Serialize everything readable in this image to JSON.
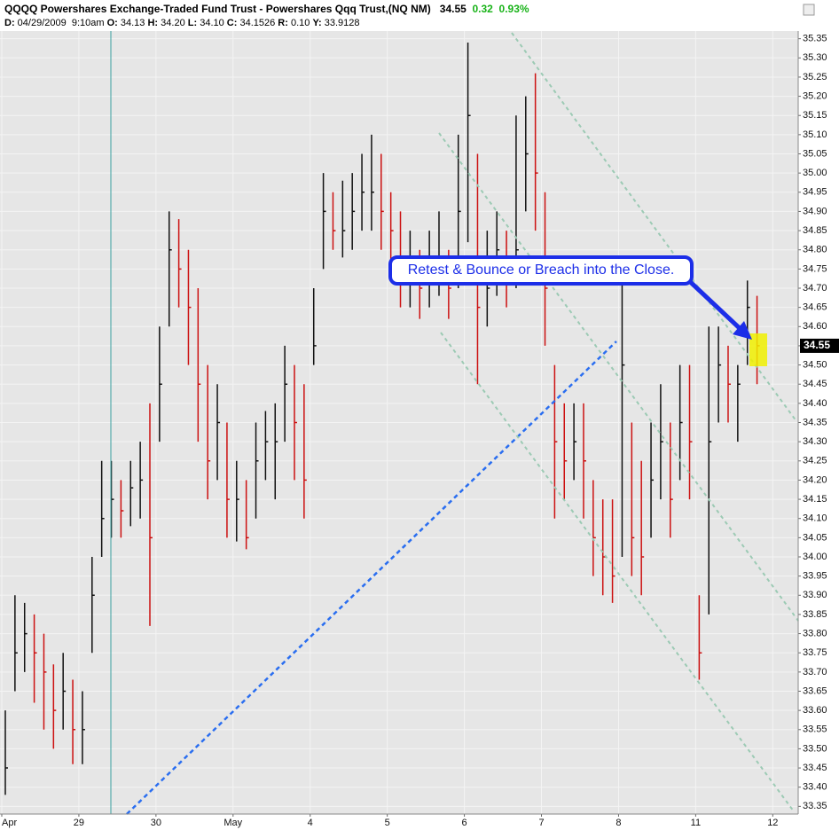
{
  "header": {
    "title": "QQQQ Powershares Exchange-Traded Fund Trust - Powershares Qqq Trust,(NQ NM)",
    "change": 0.32,
    "change_pct": "0.93%",
    "info": [
      {
        "label": "D:",
        "value": "04/29/2009  9:10am"
      },
      {
        "label": "O:",
        "value": "34.13"
      },
      {
        "label": "H:",
        "value": "34.20"
      },
      {
        "label": "L:",
        "value": "34.10"
      },
      {
        "label": "C:",
        "value": "34.1526"
      },
      {
        "label": "R:",
        "value": "0.10"
      },
      {
        "label": "Y:",
        "value": "33.9128"
      }
    ]
  },
  "chart_data": {
    "type": "hlc",
    "annotation": "Retest & Bounce or Breach into the Close.",
    "last_price": 34.55,
    "up_color": "#111111",
    "down_color": "#cc1111",
    "grid": true,
    "xlim": [
      -0.023,
      10.33
    ],
    "xticks": [
      {
        "value": 0,
        "label": "Apr"
      },
      {
        "value": 1,
        "label": "29"
      },
      {
        "value": 2,
        "label": "30"
      },
      {
        "value": 3,
        "label": "May"
      },
      {
        "value": 4,
        "label": "4"
      },
      {
        "value": 5,
        "label": "5"
      },
      {
        "value": 6,
        "label": "6"
      },
      {
        "value": 7,
        "label": "7"
      },
      {
        "value": 8,
        "label": "8"
      },
      {
        "value": 9,
        "label": "11"
      },
      {
        "value": 10,
        "label": "12"
      }
    ],
    "ylim": [
      33.33,
      35.37
    ],
    "yticks": [
      33.35,
      {
        "value": 33.4,
        "label": "33.40"
      },
      33.45,
      {
        "value": 33.5,
        "label": "33.50"
      },
      33.55,
      {
        "value": 33.6,
        "label": "33.60"
      },
      33.65,
      {
        "value": 33.7,
        "label": "33.70"
      },
      33.75,
      {
        "value": 33.8,
        "label": "33.80"
      },
      33.85,
      {
        "value": 33.9,
        "label": "33.90"
      },
      33.95,
      {
        "value": 34,
        "label": "34.00"
      },
      34.05,
      {
        "value": 34.1,
        "label": "34.10"
      },
      34.15,
      {
        "value": 34.2,
        "label": "34.20"
      },
      34.25,
      {
        "value": 34.3,
        "label": "34.30"
      },
      34.35,
      {
        "value": 34.4,
        "label": "34.40"
      },
      34.45,
      {
        "value": 34.5,
        "label": "34.50"
      },
      34.55,
      {
        "value": 34.6,
        "label": "34.60"
      },
      34.65,
      {
        "value": 34.7,
        "label": "34.70"
      },
      34.75,
      {
        "value": 34.8,
        "label": "34.80"
      },
      34.85,
      {
        "value": 34.9,
        "label": "34.90"
      },
      34.95,
      {
        "value": 35,
        "label": "35.00"
      },
      35.05,
      {
        "value": 35.1,
        "label": "35.10"
      },
      35.15,
      {
        "value": 35.2,
        "label": "35.20"
      },
      35.25,
      {
        "value": 35.3,
        "label": "35.30"
      },
      35.35
    ],
    "x": [
      0,
      0.125,
      0.25,
      0.375,
      0.5,
      0.625,
      0.75,
      0.875,
      1,
      1.125,
      1.25,
      1.375,
      1.5,
      1.625,
      1.75,
      1.875,
      2,
      2.125,
      2.25,
      2.375,
      2.5,
      2.625,
      2.75,
      2.875,
      3,
      3.125,
      3.25,
      3.375,
      3.5,
      3.625,
      3.75,
      3.875,
      4,
      4.125,
      4.25,
      4.375,
      4.5,
      4.625,
      4.75,
      4.875,
      5,
      5.125,
      5.25,
      5.375,
      5.5,
      5.625,
      5.75,
      5.875,
      6,
      6.125,
      6.25,
      6.375,
      6.5,
      6.625,
      6.75,
      6.875,
      7,
      7.125,
      7.25,
      7.375,
      7.5,
      7.625,
      7.75,
      7.875,
      8,
      8.125,
      8.25,
      8.375,
      8.5,
      8.625,
      8.75,
      8.875,
      9,
      9.125,
      9.25,
      9.375,
      9.5,
      9.625,
      9.75
    ],
    "high": [
      33.6,
      33.9,
      33.88,
      33.85,
      33.8,
      33.72,
      33.75,
      33.68,
      33.65,
      34.0,
      34.25,
      34.25,
      34.2,
      34.25,
      34.3,
      34.4,
      34.6,
      34.9,
      34.88,
      34.8,
      34.7,
      34.5,
      34.45,
      34.35,
      34.25,
      34.2,
      34.35,
      34.38,
      34.4,
      34.55,
      34.5,
      34.45,
      34.7,
      35.0,
      34.95,
      34.98,
      35.0,
      35.05,
      35.1,
      35.05,
      34.95,
      34.9,
      34.85,
      34.8,
      34.85,
      34.9,
      34.8,
      35.1,
      35.34,
      35.05,
      34.85,
      34.9,
      34.85,
      35.15,
      35.2,
      35.26,
      34.95,
      34.5,
      34.4,
      34.4,
      34.4,
      34.2,
      34.15,
      34.15,
      34.72,
      34.35,
      34.25,
      34.35,
      34.45,
      34.35,
      34.5,
      34.5,
      33.9,
      34.6,
      34.6,
      34.55,
      34.5,
      34.72,
      34.68
    ],
    "low": [
      33.38,
      33.65,
      33.7,
      33.62,
      33.55,
      33.5,
      33.55,
      33.46,
      33.46,
      33.75,
      34.0,
      34.05,
      34.05,
      34.08,
      34.1,
      33.82,
      34.3,
      34.6,
      34.65,
      34.5,
      34.3,
      34.15,
      34.2,
      34.05,
      34.04,
      34.02,
      34.1,
      34.2,
      34.15,
      34.3,
      34.2,
      34.1,
      34.5,
      34.75,
      34.8,
      34.78,
      34.8,
      34.85,
      34.85,
      34.8,
      34.72,
      34.65,
      34.65,
      34.62,
      34.65,
      34.68,
      34.62,
      34.7,
      34.82,
      34.45,
      34.6,
      34.68,
      34.65,
      34.7,
      34.9,
      34.85,
      34.55,
      34.1,
      34.15,
      34.2,
      34.1,
      33.95,
      33.9,
      33.88,
      34.0,
      33.95,
      33.9,
      34.05,
      34.15,
      34.05,
      34.2,
      34.15,
      33.68,
      33.85,
      34.35,
      34.35,
      34.3,
      34.5,
      34.45
    ],
    "close": [
      33.45,
      33.75,
      33.8,
      33.75,
      33.7,
      33.6,
      33.65,
      33.55,
      33.55,
      33.9,
      34.1,
      34.15,
      34.12,
      34.18,
      34.2,
      34.05,
      34.45,
      34.8,
      34.75,
      34.65,
      34.45,
      34.25,
      34.35,
      34.15,
      34.15,
      34.05,
      34.25,
      34.3,
      34.3,
      34.45,
      34.35,
      34.2,
      34.55,
      34.9,
      34.85,
      34.85,
      34.9,
      34.95,
      34.95,
      34.9,
      34.85,
      34.75,
      34.75,
      34.7,
      34.75,
      34.75,
      34.7,
      34.9,
      35.15,
      34.65,
      34.7,
      34.8,
      34.75,
      34.8,
      35.05,
      35.0,
      34.7,
      34.3,
      34.25,
      34.3,
      34.25,
      34.05,
      34.0,
      33.95,
      34.5,
      34.05,
      34.0,
      34.2,
      34.3,
      34.15,
      34.35,
      34.3,
      33.75,
      34.3,
      34.5,
      34.45,
      34.45,
      34.65,
      34.55
    ]
  }
}
